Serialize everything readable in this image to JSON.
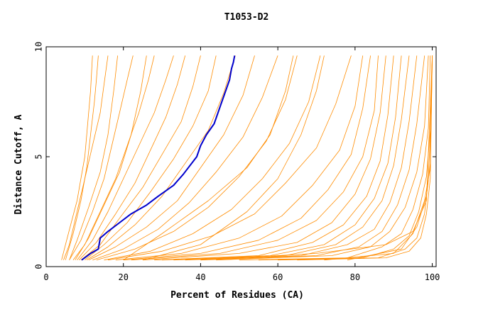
{
  "chart_data": {
    "type": "line",
    "title": "T1053-D2",
    "xlabel": "Percent of Residues (CA)",
    "ylabel": "Distance Cutoff, A",
    "xlim": [
      0,
      101
    ],
    "ylim": [
      0,
      10
    ],
    "xticks": [
      0,
      20,
      40,
      60,
      80,
      100
    ],
    "yticks": [
      0,
      5,
      10
    ],
    "grid": false,
    "legend": "none",
    "colors": {
      "background_series": "#ff8c00",
      "highlight_series": "#0000cc",
      "axes": "#000000"
    },
    "highlight_series": {
      "x": [
        9.2,
        11.5,
        13.5,
        14.0,
        16.0,
        19.0,
        22.0,
        26.0,
        29.0,
        33.0,
        35.5,
        39.0,
        40.0,
        41.5,
        43.5,
        44.5,
        45.5,
        46.5,
        47.5,
        48.0,
        48.5,
        48.8
      ],
      "y": [
        0.3,
        0.6,
        0.8,
        1.3,
        1.6,
        2.0,
        2.4,
        2.8,
        3.2,
        3.7,
        4.2,
        5.0,
        5.5,
        6.0,
        6.5,
        7.0,
        7.5,
        8.0,
        8.5,
        9.0,
        9.3,
        9.6
      ]
    },
    "background_series": [
      {
        "x": [
          4.0,
          5.0,
          6.5,
          8.0,
          9.0,
          10.0,
          10.5,
          11.0,
          11.5,
          12.0
        ],
        "y": [
          0.3,
          1.0,
          2.0,
          3.0,
          4.0,
          5.0,
          6.0,
          7.0,
          8.0,
          9.6
        ]
      },
      {
        "x": [
          5.0,
          7.0,
          9.0,
          10.5,
          11.5,
          12.5,
          13.0,
          13.5
        ],
        "y": [
          0.3,
          1.5,
          3.0,
          4.5,
          6.0,
          7.5,
          8.5,
          9.6
        ]
      },
      {
        "x": [
          4.5,
          6.0,
          8.0,
          10.0,
          12.0,
          14.0,
          15.0,
          16.0
        ],
        "y": [
          0.3,
          1.0,
          2.5,
          4.0,
          5.5,
          7.0,
          8.3,
          9.6
        ]
      },
      {
        "x": [
          6.0,
          9.0,
          12.0,
          15.0,
          17.0,
          19.0,
          21.0,
          22.5
        ],
        "y": [
          0.3,
          1.2,
          2.5,
          4.0,
          5.5,
          7.0,
          8.5,
          9.6
        ]
      },
      {
        "x": [
          7.0,
          10.0,
          14.0,
          18.0,
          21.0,
          24.0,
          26.5,
          28.0
        ],
        "y": [
          0.3,
          1.0,
          2.5,
          4.0,
          5.5,
          7.0,
          8.5,
          9.6
        ]
      },
      {
        "x": [
          8.0,
          12.0,
          16.0,
          20.0,
          24.0,
          28.0,
          31.0,
          33.0
        ],
        "y": [
          0.3,
          1.2,
          2.5,
          4.0,
          5.5,
          7.0,
          8.5,
          9.6
        ]
      },
      {
        "x": [
          8.5,
          13.0,
          18.0,
          23.0,
          27.0,
          31.0,
          34.0,
          36.0
        ],
        "y": [
          0.3,
          1.1,
          2.4,
          3.8,
          5.3,
          6.8,
          8.3,
          9.6
        ]
      },
      {
        "x": [
          9.0,
          14.0,
          19.0,
          25.0,
          30.0,
          35.0,
          38.0,
          40.0
        ],
        "y": [
          0.3,
          1.0,
          2.2,
          3.6,
          5.1,
          6.6,
          8.2,
          9.6
        ]
      },
      {
        "x": [
          10.0,
          15.0,
          21.0,
          27.0,
          33.0,
          38.0,
          42.0,
          44.0
        ],
        "y": [
          0.3,
          1.0,
          2.0,
          3.4,
          4.9,
          6.4,
          8.0,
          9.6
        ]
      },
      {
        "x": [
          10.5,
          16.0,
          23.0,
          30.0,
          36.0,
          42.0,
          46.0,
          49.0
        ],
        "y": [
          0.3,
          0.9,
          1.9,
          3.2,
          4.7,
          6.2,
          7.9,
          9.6
        ]
      },
      {
        "x": [
          11.0,
          18.0,
          26.0,
          34.0,
          40.0,
          46.0,
          51.0,
          54.0
        ],
        "y": [
          0.3,
          0.9,
          1.8,
          3.0,
          4.5,
          6.0,
          7.8,
          9.6
        ]
      },
      {
        "x": [
          12.0,
          20.0,
          29.0,
          37.0,
          44.0,
          51.0,
          56.0,
          60.0
        ],
        "y": [
          0.3,
          0.8,
          1.7,
          2.9,
          4.3,
          5.9,
          7.7,
          9.6
        ]
      },
      {
        "x": [
          13.0,
          23.0,
          33.0,
          42.0,
          50.0,
          57.0,
          62.0,
          65.0
        ],
        "y": [
          0.3,
          0.8,
          1.6,
          2.7,
          4.1,
          5.7,
          7.6,
          9.6
        ]
      },
      {
        "x": [
          15.0,
          27.0,
          38.0,
          48.0,
          56.0,
          63.0,
          68.0,
          71.0
        ],
        "y": [
          0.3,
          0.7,
          1.5,
          2.6,
          4.0,
          5.6,
          7.5,
          9.6
        ]
      },
      {
        "x": [
          16.0,
          30.0,
          43.0,
          54.0,
          62.0,
          70.0,
          75.0,
          79.0
        ],
        "y": [
          0.3,
          0.7,
          1.4,
          2.4,
          3.8,
          5.4,
          7.4,
          9.6
        ]
      },
      {
        "x": [
          18.0,
          35.0,
          50.0,
          61.0,
          69.0,
          76.0,
          80.0,
          82.0
        ],
        "y": [
          0.3,
          0.6,
          1.3,
          2.3,
          3.7,
          5.3,
          7.3,
          9.6
        ]
      },
      {
        "x": [
          20.0,
          40.0,
          55.0,
          66.0,
          73.0,
          79.0,
          82.0,
          84.0
        ],
        "y": [
          0.3,
          0.6,
          1.2,
          2.2,
          3.5,
          5.1,
          7.2,
          9.6
        ]
      },
      {
        "x": [
          22.0,
          45.0,
          60.0,
          70.0,
          77.0,
          82.0,
          85.0,
          86.0
        ],
        "y": [
          0.3,
          0.6,
          1.2,
          2.1,
          3.4,
          5.0,
          7.1,
          9.6
        ]
      },
      {
        "x": [
          25.0,
          50.0,
          65.0,
          74.0,
          80.0,
          84.0,
          86.5,
          88.0
        ],
        "y": [
          0.3,
          0.6,
          1.1,
          2.0,
          3.3,
          4.9,
          7.0,
          9.6
        ]
      },
      {
        "x": [
          28.0,
          55.0,
          69.0,
          77.0,
          83.0,
          86.5,
          88.5,
          90.0
        ],
        "y": [
          0.3,
          0.5,
          1.1,
          1.9,
          3.2,
          4.8,
          6.9,
          9.6
        ]
      },
      {
        "x": [
          30.0,
          58.0,
          72.0,
          80.0,
          85.0,
          88.5,
          90.5,
          92.0
        ],
        "y": [
          0.3,
          0.5,
          1.0,
          1.9,
          3.1,
          4.7,
          6.8,
          9.6
        ]
      },
      {
        "x": [
          33.0,
          62.0,
          75.0,
          82.0,
          87.0,
          90.0,
          92.0,
          94.0
        ],
        "y": [
          0.3,
          0.5,
          1.0,
          1.8,
          3.0,
          4.6,
          6.7,
          9.6
        ]
      },
      {
        "x": [
          36.0,
          66.0,
          78.0,
          85.0,
          89.0,
          92.0,
          94.0,
          96.0
        ],
        "y": [
          0.3,
          0.5,
          1.0,
          1.7,
          2.9,
          4.5,
          6.6,
          9.6
        ]
      },
      {
        "x": [
          40.0,
          70.0,
          81.0,
          87.0,
          91.0,
          94.0,
          96.0,
          98.0
        ],
        "y": [
          0.3,
          0.5,
          0.9,
          1.6,
          2.8,
          4.4,
          6.5,
          9.6
        ]
      },
      {
        "x": [
          44.0,
          74.0,
          84.0,
          89.0,
          93.0,
          96.0,
          98.0,
          99.0
        ],
        "y": [
          0.3,
          0.5,
          0.9,
          1.6,
          2.7,
          4.3,
          6.4,
          9.6
        ]
      },
      {
        "x": [
          50.0,
          78.0,
          87.0,
          92.0,
          95.0,
          97.5,
          99.0,
          99.5
        ],
        "y": [
          0.3,
          0.4,
          0.9,
          1.5,
          2.6,
          4.2,
          6.3,
          9.6
        ]
      },
      {
        "x": [
          55.0,
          82.0,
          90.0,
          94.0,
          96.5,
          98.5,
          99.5,
          100.0
        ],
        "y": [
          0.3,
          0.4,
          0.8,
          1.4,
          2.5,
          4.1,
          6.2,
          9.6
        ]
      },
      {
        "x": [
          60.0,
          86.0,
          93.0,
          96.0,
          98.0,
          99.0,
          99.5,
          100.0
        ],
        "y": [
          0.3,
          0.4,
          0.8,
          1.3,
          2.4,
          4.0,
          6.0,
          9.6
        ]
      },
      {
        "x": [
          65.0,
          88.0,
          94.0,
          97.0,
          98.5,
          99.5,
          100.0
        ],
        "y": [
          0.3,
          0.4,
          0.7,
          1.3,
          2.4,
          4.0,
          9.6
        ]
      },
      {
        "x": [
          40.0,
          70.0,
          88.0,
          95.0,
          98.5,
          100.0
        ],
        "y": [
          0.3,
          0.6,
          1.0,
          1.6,
          3.0,
          9.6
        ]
      },
      {
        "x": [
          72.0,
          90.0,
          95.0,
          98.0,
          99.5,
          100.0
        ],
        "y": [
          0.3,
          0.6,
          1.5,
          3.0,
          4.5,
          9.6
        ]
      },
      {
        "x": [
          78.0,
          92.0,
          96.0,
          98.5,
          99.5,
          100.0
        ],
        "y": [
          0.3,
          0.8,
          1.8,
          3.2,
          4.7,
          9.6
        ]
      },
      {
        "x": [
          20.0,
          30.0,
          42.0,
          52.0,
          58.0,
          62.0,
          64.0
        ],
        "y": [
          0.3,
          1.5,
          3.0,
          4.5,
          6.0,
          8.0,
          9.6
        ]
      },
      {
        "x": [
          25.0,
          40.0,
          52.0,
          60.0,
          66.0,
          70.0,
          72.0
        ],
        "y": [
          0.3,
          1.0,
          2.5,
          4.0,
          6.0,
          8.0,
          9.6
        ]
      },
      {
        "x": [
          6.0,
          8.0,
          11.0,
          14.0,
          16.0,
          17.5,
          18.5
        ],
        "y": [
          0.3,
          1.2,
          2.7,
          4.3,
          6.0,
          8.0,
          9.6
        ]
      },
      {
        "x": [
          7.5,
          11.0,
          15.0,
          19.0,
          22.0,
          24.5,
          26.0
        ],
        "y": [
          0.3,
          1.3,
          2.8,
          4.3,
          6.0,
          8.0,
          9.6
        ]
      }
    ]
  }
}
